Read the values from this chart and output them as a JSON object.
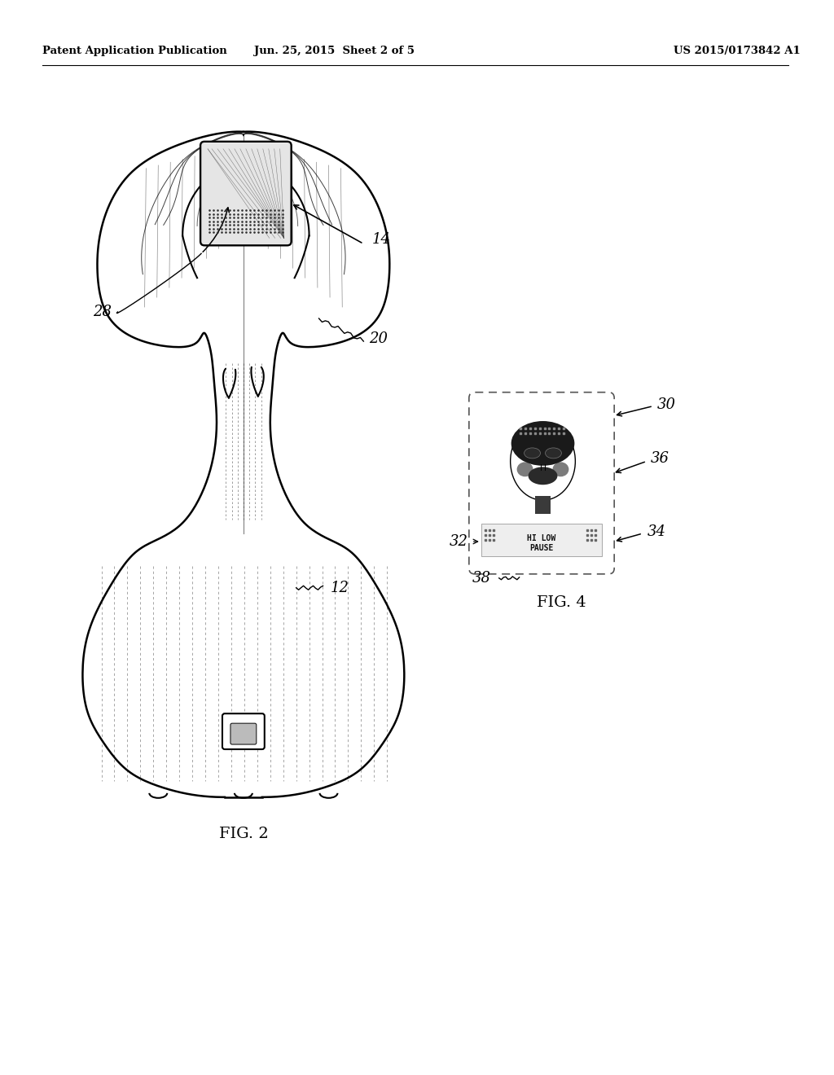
{
  "bg_color": "#ffffff",
  "header_left": "Patent Application Publication",
  "header_center": "Jun. 25, 2015  Sheet 2 of 5",
  "header_right": "US 2015/0173842 A1",
  "fig2_label": "FIG. 2",
  "fig4_label": "FIG. 4",
  "label_14": "14",
  "label_20": "20",
  "label_28": "28",
  "label_12": "12",
  "label_32": "32",
  "label_30": "30",
  "label_34": "34",
  "label_36": "36",
  "label_38": "38",
  "line_color": "#000000",
  "line_width": 1.5,
  "thin_line": 0.7
}
